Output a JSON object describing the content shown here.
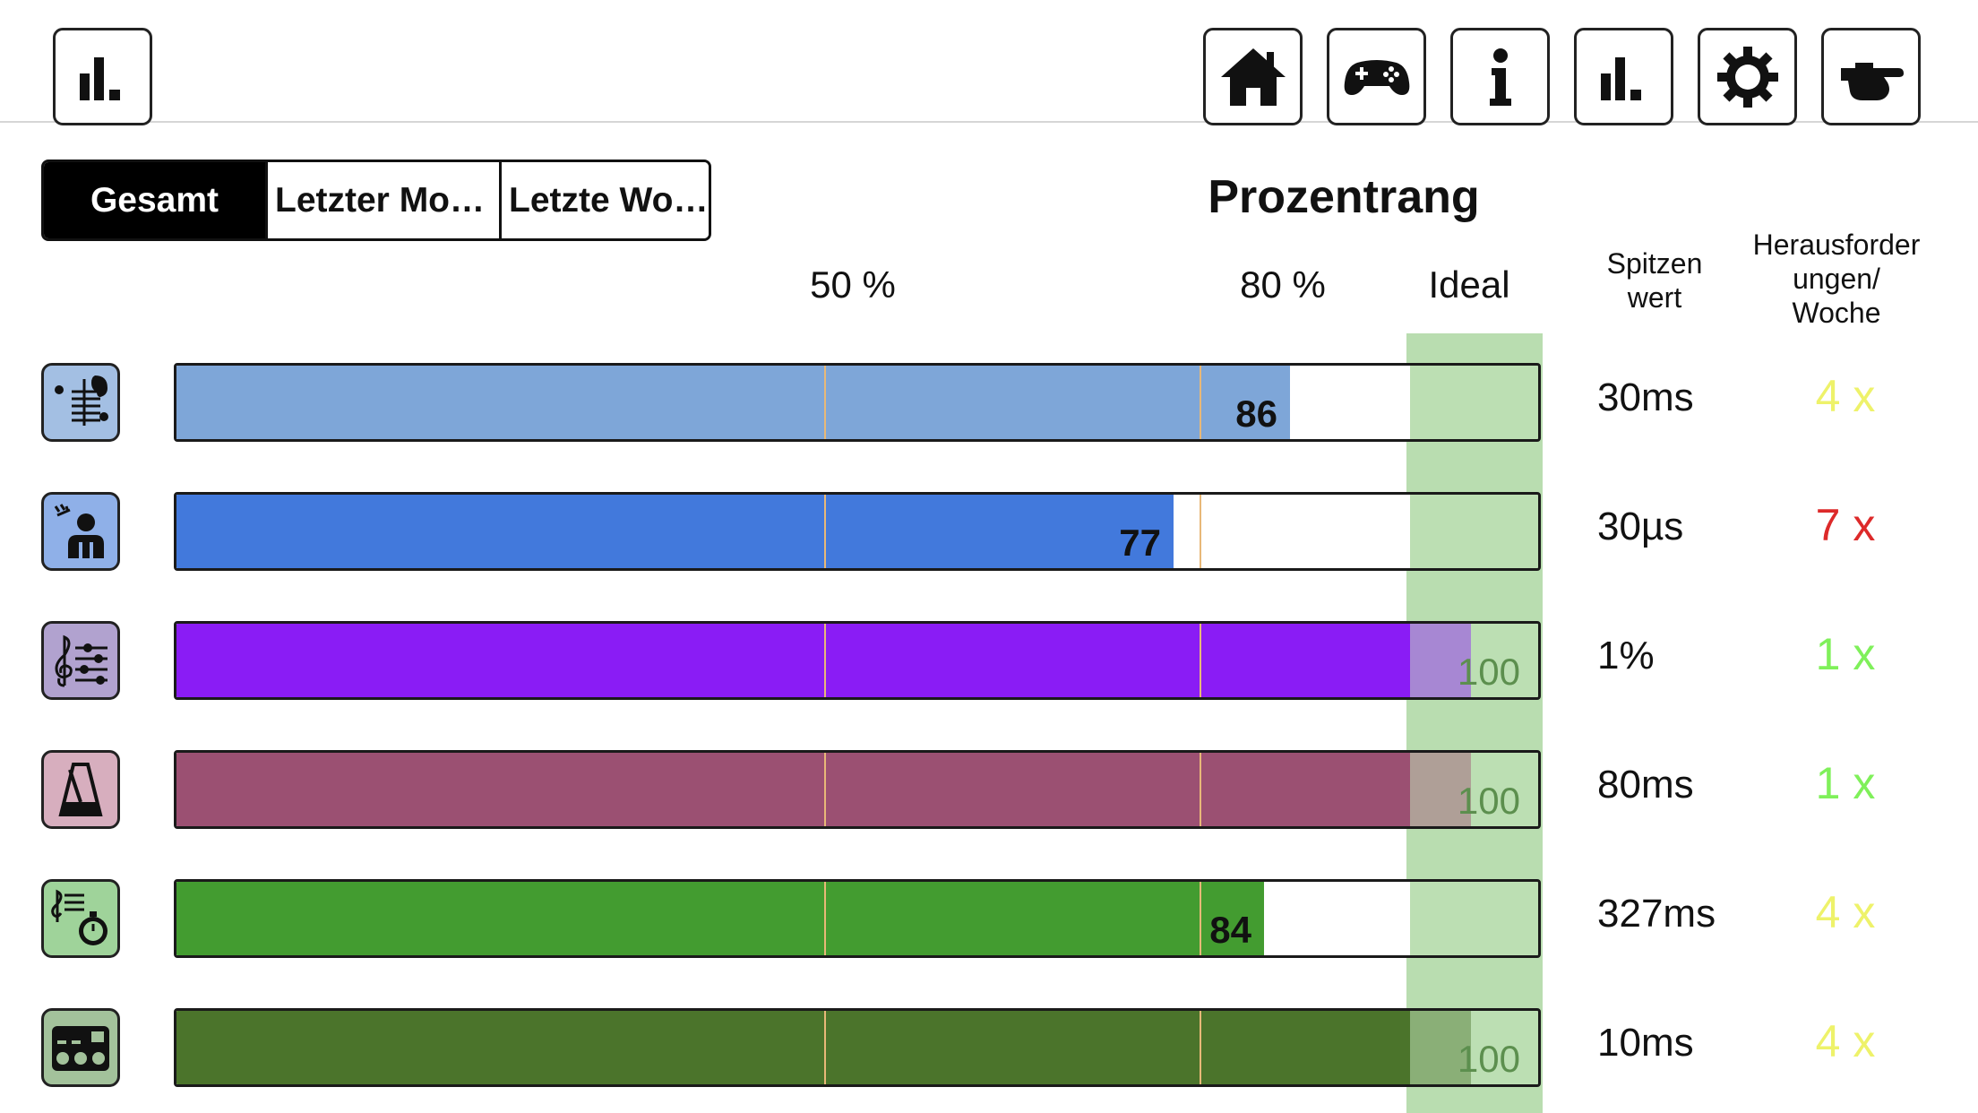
{
  "nav": {
    "left_button": {
      "icon": "bar-chart-icon"
    },
    "right_buttons": [
      {
        "icon": "home-icon"
      },
      {
        "icon": "gamepad-icon"
      },
      {
        "icon": "info-icon"
      },
      {
        "icon": "bar-chart-icon"
      },
      {
        "icon": "gear-icon"
      },
      {
        "icon": "pointing-hand-icon"
      }
    ]
  },
  "tabs": [
    {
      "label": "Gesamt",
      "active": true
    },
    {
      "label": "Letzter Mo…",
      "active": false
    },
    {
      "label": "Letzte Wo…",
      "active": false
    }
  ],
  "title": "Prozentrang",
  "scale": {
    "p50": "50 %",
    "p80": "80 %",
    "ideal": "Ideal"
  },
  "columns": {
    "peak_line1": "Spitzen",
    "peak_line2": "wert",
    "chal_line1": "Herausforder",
    "chal_line2": "ungen/",
    "chal_line3": "Woche"
  },
  "rows": [
    {
      "icon": "pitch-hearing-icon",
      "icon_bg": "#a3bfe3",
      "percentile": 86,
      "value_label": "86",
      "bar_color": "#7ea6d8",
      "peak": "30ms",
      "challenges": "4 x",
      "challenges_color": "#eef26a"
    },
    {
      "icon": "person-listening-icon",
      "icon_bg": "#8fb0e8",
      "percentile": 77,
      "value_label": "77",
      "bar_color": "#4279dc",
      "peak": "30µs",
      "challenges": "7 x",
      "challenges_color": "#dd2a2a"
    },
    {
      "icon": "treble-clef-sliders-icon",
      "icon_bg": "#b1a2cf",
      "percentile": 100,
      "value_label": "100",
      "bar_color": "#8a1cf5",
      "peak": "1%",
      "challenges": "1 x",
      "challenges_color": "#7ff05a"
    },
    {
      "icon": "metronome-icon",
      "icon_bg": "#d7aebe",
      "percentile": 100,
      "value_label": "100",
      "bar_color": "#9b5072",
      "peak": "80ms",
      "challenges": "1 x",
      "challenges_color": "#7ff05a"
    },
    {
      "icon": "clef-stopwatch-icon",
      "icon_bg": "#9fd39a",
      "percentile": 84,
      "value_label": "84",
      "bar_color": "#439c30",
      "peak": "327ms",
      "challenges": "4 x",
      "challenges_color": "#eef26a"
    },
    {
      "icon": "rhythm-pads-icon",
      "icon_bg": "#a3c29b",
      "percentile": 100,
      "value_label": "100",
      "bar_color": "#4b742b",
      "peak": "10ms",
      "challenges": "4 x",
      "challenges_color": "#eef26a"
    }
  ]
}
